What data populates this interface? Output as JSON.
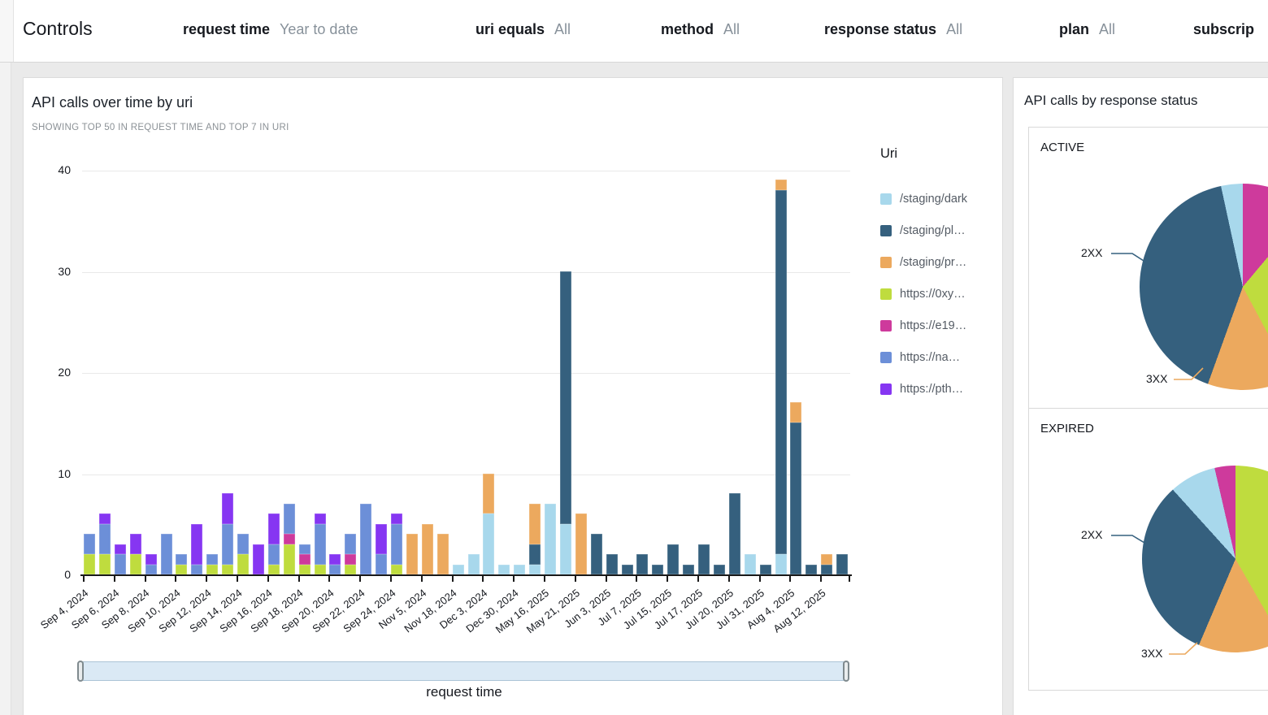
{
  "controls": {
    "title": "Controls",
    "filters": [
      {
        "name": "request time",
        "value": "Year to date"
      },
      {
        "name": "uri equals",
        "value": "All"
      },
      {
        "name": "method",
        "value": "All"
      },
      {
        "name": "response status",
        "value": "All"
      },
      {
        "name": "plan",
        "value": "All"
      },
      {
        "name": "subscrip",
        "value": ""
      }
    ]
  },
  "palette": {
    "lightblue": "#a8d8ec",
    "darkslate": "#35607e",
    "orange": "#eca95e",
    "green": "#bfdc3e",
    "magenta": "#ce3a9c",
    "cornflower": "#6c8fd8",
    "purple": "#8636f2"
  },
  "right_panel": {
    "title": "API calls by response status"
  },
  "chart_data": [
    {
      "type": "bar",
      "stacked": true,
      "title": "API calls over time by uri",
      "subtitle": "SHOWING TOP 50 IN REQUEST TIME AND TOP 7 IN URI",
      "xlabel": "request time",
      "ylabel": "",
      "ylim": [
        0,
        40
      ],
      "yticks": [
        0,
        10,
        20,
        30,
        40
      ],
      "grid": true,
      "legend_position": "right",
      "legend_title": "Uri",
      "series_legend": [
        {
          "color": "lightblue",
          "label": "/staging/dark"
        },
        {
          "color": "darkslate",
          "label": "/staging/pl…"
        },
        {
          "color": "orange",
          "label": "/staging/pr…"
        },
        {
          "color": "green",
          "label": "https://0xy…"
        },
        {
          "color": "magenta",
          "label": "https://e19…"
        },
        {
          "color": "cornflower",
          "label": "https://na…"
        },
        {
          "color": "purple",
          "label": "https://pth…"
        }
      ],
      "bars": [
        {
          "label": "Sep 4, 2024",
          "segments": [
            [
              "green",
              2
            ],
            [
              "cornflower",
              2
            ]
          ]
        },
        {
          "label": "",
          "segments": [
            [
              "green",
              2
            ],
            [
              "cornflower",
              3
            ],
            [
              "purple",
              1
            ]
          ]
        },
        {
          "label": "Sep 6, 2024",
          "segments": [
            [
              "cornflower",
              2
            ],
            [
              "purple",
              1
            ]
          ]
        },
        {
          "label": "",
          "segments": [
            [
              "green",
              2
            ],
            [
              "purple",
              2
            ]
          ]
        },
        {
          "label": "Sep 8, 2024",
          "segments": [
            [
              "cornflower",
              1
            ],
            [
              "purple",
              1
            ]
          ]
        },
        {
          "label": "",
          "segments": [
            [
              "cornflower",
              4
            ]
          ]
        },
        {
          "label": "Sep 10, 2024",
          "segments": [
            [
              "green",
              1
            ],
            [
              "cornflower",
              1
            ]
          ]
        },
        {
          "label": "",
          "segments": [
            [
              "cornflower",
              1
            ],
            [
              "purple",
              4
            ]
          ]
        },
        {
          "label": "Sep 12, 2024",
          "segments": [
            [
              "green",
              1
            ],
            [
              "cornflower",
              1
            ]
          ]
        },
        {
          "label": "",
          "segments": [
            [
              "green",
              1
            ],
            [
              "cornflower",
              4
            ],
            [
              "purple",
              3
            ]
          ]
        },
        {
          "label": "Sep 14, 2024",
          "segments": [
            [
              "green",
              2
            ],
            [
              "cornflower",
              2
            ]
          ]
        },
        {
          "label": "",
          "segments": [
            [
              "purple",
              3
            ]
          ]
        },
        {
          "label": "Sep 16, 2024",
          "segments": [
            [
              "green",
              1
            ],
            [
              "cornflower",
              2
            ],
            [
              "purple",
              3
            ]
          ]
        },
        {
          "label": "",
          "segments": [
            [
              "green",
              3
            ],
            [
              "magenta",
              1
            ],
            [
              "cornflower",
              3
            ]
          ]
        },
        {
          "label": "Sep 18, 2024",
          "segments": [
            [
              "green",
              1
            ],
            [
              "magenta",
              1
            ],
            [
              "cornflower",
              1
            ]
          ]
        },
        {
          "label": "",
          "segments": [
            [
              "green",
              1
            ],
            [
              "cornflower",
              4
            ],
            [
              "purple",
              1
            ]
          ]
        },
        {
          "label": "Sep 20, 2024",
          "segments": [
            [
              "cornflower",
              1
            ],
            [
              "purple",
              1
            ]
          ]
        },
        {
          "label": "",
          "segments": [
            [
              "green",
              1
            ],
            [
              "magenta",
              1
            ],
            [
              "cornflower",
              2
            ]
          ]
        },
        {
          "label": "Sep 22, 2024",
          "segments": [
            [
              "cornflower",
              7
            ]
          ]
        },
        {
          "label": "",
          "segments": [
            [
              "cornflower",
              2
            ],
            [
              "purple",
              3
            ]
          ]
        },
        {
          "label": "Sep 24, 2024",
          "segments": [
            [
              "green",
              1
            ],
            [
              "cornflower",
              4
            ],
            [
              "purple",
              1
            ]
          ]
        },
        {
          "label": "",
          "segments": [
            [
              "orange",
              4
            ]
          ]
        },
        {
          "label": "Nov 5, 2024",
          "segments": [
            [
              "orange",
              5
            ]
          ]
        },
        {
          "label": "",
          "segments": [
            [
              "orange",
              4
            ]
          ]
        },
        {
          "label": "Nov 18, 2024",
          "segments": [
            [
              "lightblue",
              1
            ]
          ]
        },
        {
          "label": "",
          "segments": [
            [
              "lightblue",
              2
            ]
          ]
        },
        {
          "label": "Dec 3, 2024",
          "segments": [
            [
              "lightblue",
              6
            ],
            [
              "orange",
              4
            ]
          ]
        },
        {
          "label": "",
          "segments": [
            [
              "lightblue",
              1
            ]
          ]
        },
        {
          "label": "Dec 30, 2024",
          "segments": [
            [
              "lightblue",
              1
            ]
          ]
        },
        {
          "label": "",
          "segments": [
            [
              "lightblue",
              1
            ],
            [
              "darkslate",
              2
            ],
            [
              "orange",
              4
            ]
          ]
        },
        {
          "label": "May 16, 2025",
          "segments": [
            [
              "lightblue",
              7
            ]
          ]
        },
        {
          "label": "",
          "segments": [
            [
              "lightblue",
              5
            ],
            [
              "darkslate",
              25
            ]
          ]
        },
        {
          "label": "May 21, 2025",
          "segments": [
            [
              "orange",
              6
            ]
          ]
        },
        {
          "label": "",
          "segments": [
            [
              "darkslate",
              4
            ]
          ]
        },
        {
          "label": "Jun 3, 2025",
          "segments": [
            [
              "darkslate",
              2
            ]
          ]
        },
        {
          "label": "",
          "segments": [
            [
              "darkslate",
              1
            ]
          ]
        },
        {
          "label": "Jul 7, 2025",
          "segments": [
            [
              "darkslate",
              2
            ]
          ]
        },
        {
          "label": "",
          "segments": [
            [
              "darkslate",
              1
            ]
          ]
        },
        {
          "label": "Jul 15, 2025",
          "segments": [
            [
              "darkslate",
              3
            ]
          ]
        },
        {
          "label": "",
          "segments": [
            [
              "darkslate",
              1
            ]
          ]
        },
        {
          "label": "Jul 17, 2025",
          "segments": [
            [
              "darkslate",
              3
            ]
          ]
        },
        {
          "label": "",
          "segments": [
            [
              "darkslate",
              1
            ]
          ]
        },
        {
          "label": "Jul 20, 2025",
          "segments": [
            [
              "darkslate",
              8
            ]
          ]
        },
        {
          "label": "",
          "segments": [
            [
              "lightblue",
              2
            ]
          ]
        },
        {
          "label": "Jul 31, 2025",
          "segments": [
            [
              "darkslate",
              1
            ]
          ]
        },
        {
          "label": "",
          "segments": [
            [
              "lightblue",
              2
            ],
            [
              "darkslate",
              36
            ],
            [
              "orange",
              1
            ]
          ]
        },
        {
          "label": "Aug 4, 2025",
          "segments": [
            [
              "darkslate",
              15
            ],
            [
              "orange",
              2
            ]
          ]
        },
        {
          "label": "",
          "segments": [
            [
              "darkslate",
              1
            ]
          ]
        },
        {
          "label": "Aug 12, 2025",
          "segments": [
            [
              "darkslate",
              1
            ],
            [
              "orange",
              1
            ]
          ]
        },
        {
          "label": "",
          "segments": [
            [
              "darkslate",
              2
            ]
          ]
        }
      ]
    },
    {
      "type": "pie",
      "title": "ACTIVE",
      "slices": [
        {
          "color": "magenta",
          "pct": 11.1,
          "label": ""
        },
        {
          "color": "green",
          "pct": 31.1,
          "label": ""
        },
        {
          "color": "orange",
          "pct": 13.3,
          "label": "3XX"
        },
        {
          "color": "darkslate",
          "pct": 41.1,
          "label": "2XX"
        },
        {
          "color": "lightblue",
          "pct": 3.4,
          "label": ""
        }
      ]
    },
    {
      "type": "pie",
      "title": "EXPIRED",
      "slices": [
        {
          "color": "green",
          "pct": 41.7,
          "label": ""
        },
        {
          "color": "orange",
          "pct": 14.7,
          "label": "3XX"
        },
        {
          "color": "darkslate",
          "pct": 31.9,
          "label": "2XX"
        },
        {
          "color": "lightblue",
          "pct": 8.1,
          "label": ""
        },
        {
          "color": "magenta",
          "pct": 3.6,
          "label": ""
        }
      ]
    }
  ]
}
